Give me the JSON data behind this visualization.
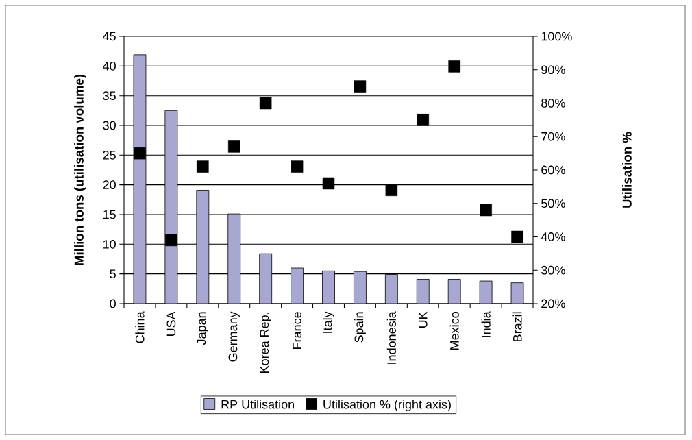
{
  "chart_data": {
    "type": "bar",
    "categories": [
      "China",
      "USA",
      "Japan",
      "Germany",
      "Korea Rep.",
      "France",
      "Italy",
      "Spain",
      "Indonesia",
      "UK",
      "Mexico",
      "India",
      "Brazil"
    ],
    "ylabel": "Million tons (utilisation volume)",
    "y2label": "Utilisation %",
    "series": [
      {
        "name": "RP Utilisation",
        "color": "#a7a7d2",
        "values": [
          41.9,
          32.5,
          19.1,
          15.1,
          8.4,
          6.0,
          5.5,
          5.4,
          4.9,
          4.1,
          4.1,
          3.8,
          3.5
        ]
      },
      {
        "name": "Utilisation % (right axis)",
        "type": "scatter",
        "axis": "y2",
        "color": "#000000",
        "values": [
          65,
          39,
          61,
          67,
          80,
          61,
          56,
          85,
          54,
          75,
          91,
          48,
          40
        ]
      }
    ],
    "ylim": [
      0,
      45
    ],
    "yticks": [
      0,
      5,
      10,
      15,
      20,
      25,
      30,
      35,
      40,
      45
    ],
    "y2lim": [
      20,
      100
    ],
    "y2ticks": [
      {
        "value": 20,
        "label": "20%"
      },
      {
        "value": 30,
        "label": "30%"
      },
      {
        "value": 40,
        "label": "40%"
      },
      {
        "value": 50,
        "label": "50%"
      },
      {
        "value": 60,
        "label": "60%"
      },
      {
        "value": 70,
        "label": "70%"
      },
      {
        "value": 80,
        "label": "80%"
      },
      {
        "value": 90,
        "label": "90%"
      },
      {
        "value": 100,
        "label": "100%"
      }
    ],
    "grid": "y",
    "legend": "bottom",
    "marker": "square"
  }
}
